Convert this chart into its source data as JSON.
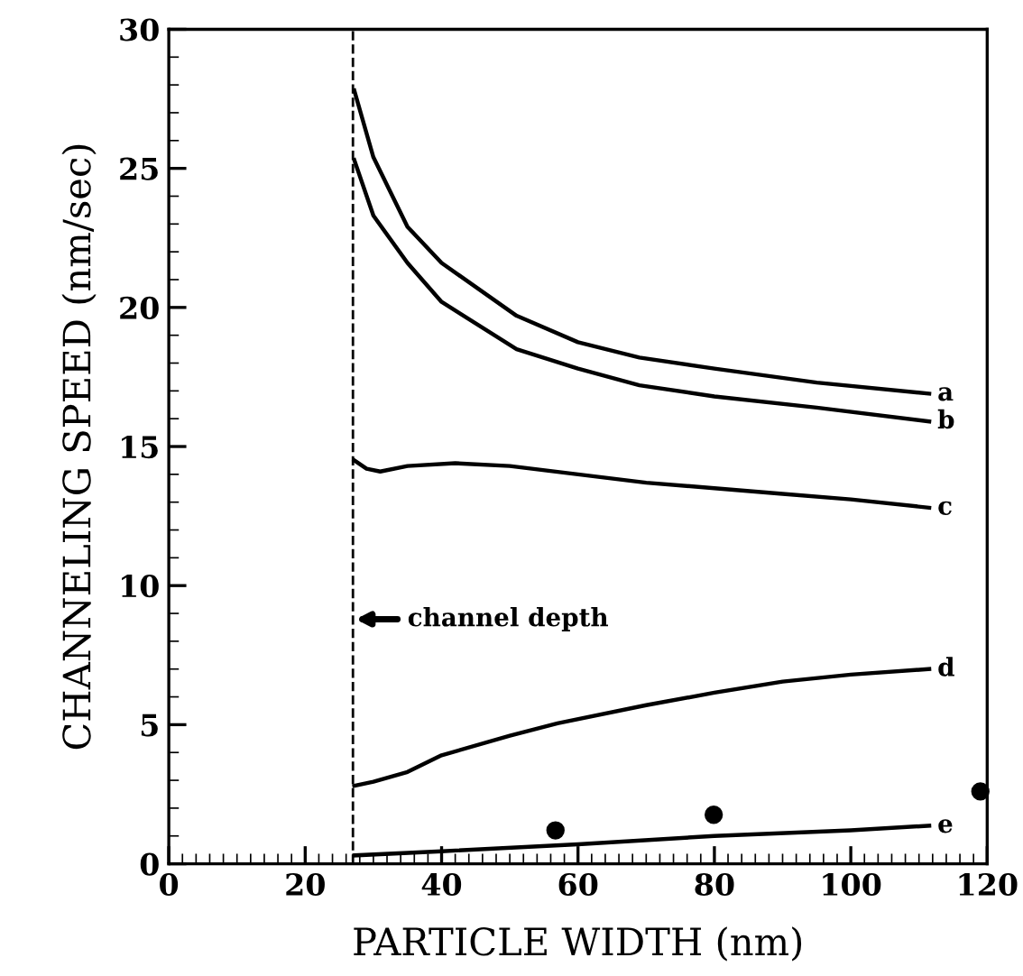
{
  "chart_data": {
    "type": "line",
    "xlabel": "PARTICLE WIDTH (nm)",
    "ylabel": "CHANNELING SPEED (nm/sec)",
    "xlim": [
      0,
      120
    ],
    "ylim": [
      0,
      30
    ],
    "xticks": [
      0,
      20,
      40,
      60,
      80,
      100,
      120
    ],
    "yticks": [
      0,
      5,
      10,
      15,
      20,
      25,
      30
    ],
    "grid": false,
    "legend": false,
    "marker": "none",
    "line_style": "solid",
    "series": [
      {
        "name": "a",
        "color": "#000000",
        "x": [
          27.2,
          30,
          35,
          40,
          51,
          60,
          69,
          80,
          95,
          111.5
        ],
        "values": [
          27.8,
          25.4,
          22.9,
          21.6,
          19.7,
          18.75,
          18.2,
          17.8,
          17.3,
          16.9
        ]
      },
      {
        "name": "b",
        "color": "#000000",
        "x": [
          27.2,
          30,
          35,
          40,
          51,
          60,
          69,
          80,
          95,
          111.5
        ],
        "values": [
          25.3,
          23.3,
          21.6,
          20.2,
          18.5,
          17.8,
          17.2,
          16.8,
          16.4,
          15.9
        ]
      },
      {
        "name": "c",
        "color": "#000000",
        "x": [
          27.2,
          29,
          31,
          35,
          42,
          50,
          60,
          70,
          80,
          90,
          100,
          111.5
        ],
        "values": [
          14.5,
          14.2,
          14.1,
          14.3,
          14.4,
          14.3,
          14.0,
          13.7,
          13.5,
          13.3,
          13.1,
          12.8
        ]
      },
      {
        "name": "d",
        "color": "#000000",
        "x": [
          27.2,
          30,
          35,
          40,
          50,
          57,
          70,
          80,
          90,
          100,
          111.5
        ],
        "values": [
          2.8,
          2.95,
          3.3,
          3.9,
          4.6,
          5.05,
          5.7,
          6.15,
          6.55,
          6.8,
          7.0
        ]
      },
      {
        "name": "e",
        "color": "#000000",
        "x": [
          27.2,
          40,
          60,
          80,
          100,
          111.5
        ],
        "values": [
          0.3,
          0.45,
          0.7,
          1.0,
          1.2,
          1.37
        ]
      },
      {
        "type": "scatter",
        "marker": "circle",
        "color": "#000000",
        "x": [
          56.7,
          79.9,
          119
        ],
        "values": [
          1.2,
          1.76,
          2.6
        ]
      }
    ],
    "ref_lines": [
      {
        "axis": "x",
        "value": 27,
        "label": "channel depth",
        "color": "#000000",
        "line_style": "dashed"
      }
    ]
  }
}
